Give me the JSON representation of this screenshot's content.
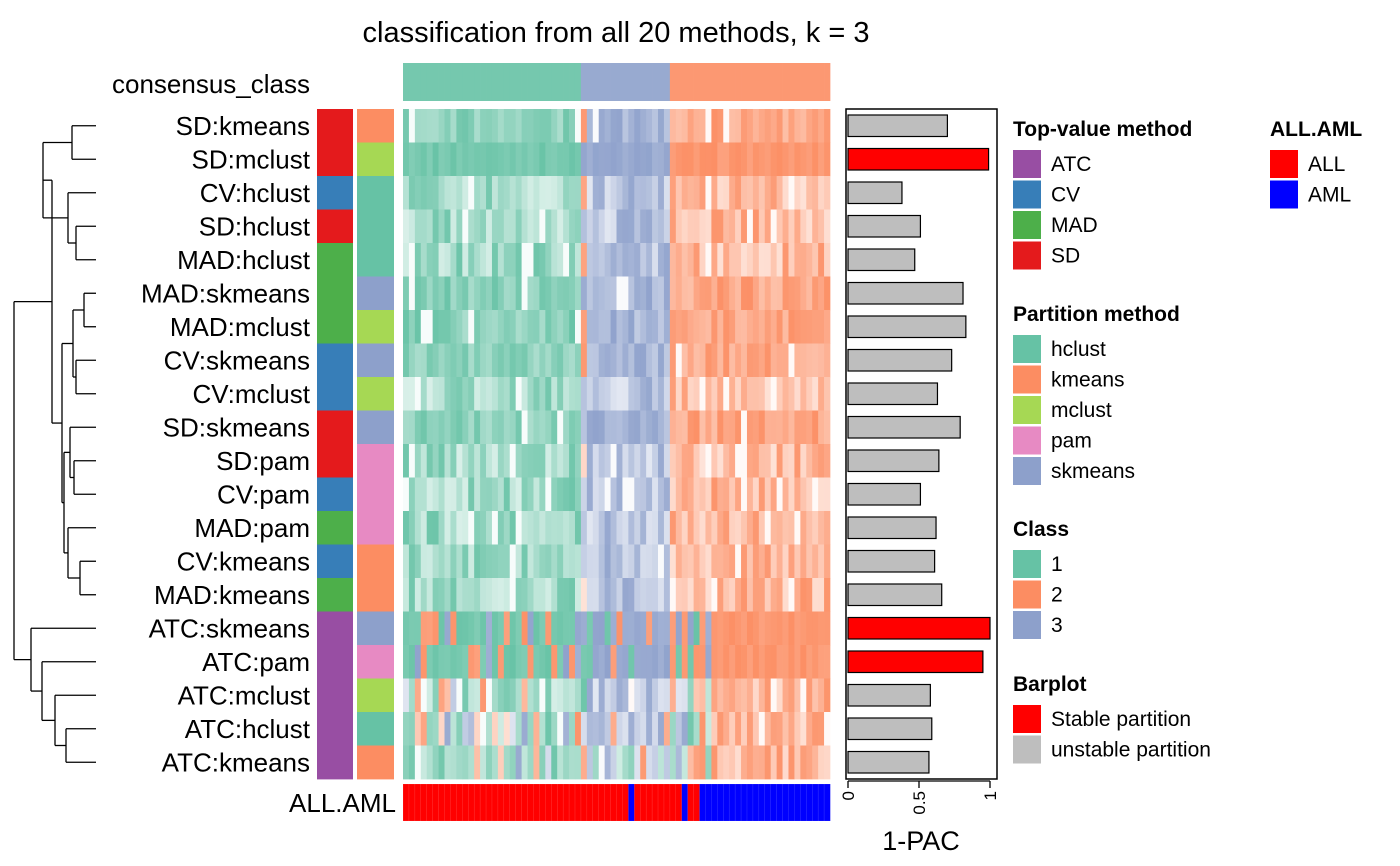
{
  "chart_data": {
    "type": "heatmap",
    "title": "classification from all 20 methods, k = 3",
    "n_samples": 72,
    "top_annotation_label": "consensus_class",
    "bottom_annotation_label": "ALL.AML",
    "rows": [
      {
        "label": "SD:kmeans",
        "top_value": "SD",
        "partition": "kmeans",
        "pac": 0.7,
        "stable": false
      },
      {
        "label": "SD:mclust",
        "top_value": "SD",
        "partition": "mclust",
        "pac": 0.99,
        "stable": true
      },
      {
        "label": "CV:hclust",
        "top_value": "CV",
        "partition": "hclust",
        "pac": 0.38,
        "stable": false
      },
      {
        "label": "SD:hclust",
        "top_value": "SD",
        "partition": "hclust",
        "pac": 0.51,
        "stable": false
      },
      {
        "label": "MAD:hclust",
        "top_value": "MAD",
        "partition": "hclust",
        "pac": 0.47,
        "stable": false
      },
      {
        "label": "MAD:skmeans",
        "top_value": "MAD",
        "partition": "skmeans",
        "pac": 0.81,
        "stable": false
      },
      {
        "label": "MAD:mclust",
        "top_value": "MAD",
        "partition": "mclust",
        "pac": 0.83,
        "stable": false
      },
      {
        "label": "CV:skmeans",
        "top_value": "CV",
        "partition": "skmeans",
        "pac": 0.73,
        "stable": false
      },
      {
        "label": "CV:mclust",
        "top_value": "CV",
        "partition": "mclust",
        "pac": 0.63,
        "stable": false
      },
      {
        "label": "SD:skmeans",
        "top_value": "SD",
        "partition": "skmeans",
        "pac": 0.79,
        "stable": false
      },
      {
        "label": "SD:pam",
        "top_value": "SD",
        "partition": "pam",
        "pac": 0.64,
        "stable": false
      },
      {
        "label": "CV:pam",
        "top_value": "CV",
        "partition": "pam",
        "pac": 0.51,
        "stable": false
      },
      {
        "label": "MAD:pam",
        "top_value": "MAD",
        "partition": "pam",
        "pac": 0.62,
        "stable": false
      },
      {
        "label": "CV:kmeans",
        "top_value": "CV",
        "partition": "kmeans",
        "pac": 0.61,
        "stable": false
      },
      {
        "label": "MAD:kmeans",
        "top_value": "MAD",
        "partition": "kmeans",
        "pac": 0.66,
        "stable": false
      },
      {
        "label": "ATC:skmeans",
        "top_value": "ATC",
        "partition": "skmeans",
        "pac": 1.0,
        "stable": true
      },
      {
        "label": "ATC:pam",
        "top_value": "ATC",
        "partition": "pam",
        "pac": 0.95,
        "stable": true
      },
      {
        "label": "ATC:mclust",
        "top_value": "ATC",
        "partition": "mclust",
        "pac": 0.58,
        "stable": false
      },
      {
        "label": "ATC:hclust",
        "top_value": "ATC",
        "partition": "hclust",
        "pac": 0.59,
        "stable": false
      },
      {
        "label": "ATC:kmeans",
        "top_value": "ATC",
        "partition": "kmeans",
        "pac": 0.57,
        "stable": false
      }
    ],
    "consensus_class_segments": [
      {
        "class": 1,
        "n": 30
      },
      {
        "class": 3,
        "n": 15
      },
      {
        "class": 2,
        "n": 27
      }
    ],
    "all_aml_segments": [
      {
        "value": "ALL",
        "n": 38
      },
      {
        "value": "AML",
        "n": 1
      },
      {
        "value": "ALL",
        "n": 8
      },
      {
        "value": "AML",
        "n": 1
      },
      {
        "value": "ALL",
        "n": 2
      },
      {
        "value": "AML",
        "n": 22
      }
    ],
    "barplot_axis": {
      "title": "1-PAC",
      "ticks": [
        "0",
        "0.5",
        "1"
      ],
      "range": [
        0,
        1
      ]
    },
    "legends": [
      {
        "title": "Top-value method",
        "items": [
          {
            "label": "ATC",
            "color": "#984EA3"
          },
          {
            "label": "CV",
            "color": "#377EB8"
          },
          {
            "label": "MAD",
            "color": "#4DAF4A"
          },
          {
            "label": "SD",
            "color": "#E41A1C"
          }
        ]
      },
      {
        "title": "Partition method",
        "items": [
          {
            "label": "hclust",
            "color": "#66C2A5"
          },
          {
            "label": "kmeans",
            "color": "#FC8D62"
          },
          {
            "label": "mclust",
            "color": "#A6D854"
          },
          {
            "label": "pam",
            "color": "#E78AC3"
          },
          {
            "label": "skmeans",
            "color": "#8DA0CB"
          }
        ]
      },
      {
        "title": "Class",
        "items": [
          {
            "label": "1",
            "color": "#66C2A5"
          },
          {
            "label": "2",
            "color": "#FC8D62"
          },
          {
            "label": "3",
            "color": "#8DA0CB"
          }
        ]
      },
      {
        "title": "Barplot",
        "items": [
          {
            "label": "Stable partition",
            "color": "#FF0000"
          },
          {
            "label": "unstable partition",
            "color": "#BEBEBE"
          }
        ]
      },
      {
        "title": "ALL.AML",
        "items": [
          {
            "label": "ALL",
            "color": "#FF0000"
          },
          {
            "label": "AML",
            "color": "#0000FF"
          }
        ]
      }
    ]
  },
  "colors": {
    "class_1": "#66C2A5",
    "class_2": "#FC8D62",
    "class_3": "#8DA0CB",
    "stable": "#FF0000",
    "unstable": "#BEBEBE",
    "ALL": "#FF0000",
    "AML": "#0000FF"
  }
}
